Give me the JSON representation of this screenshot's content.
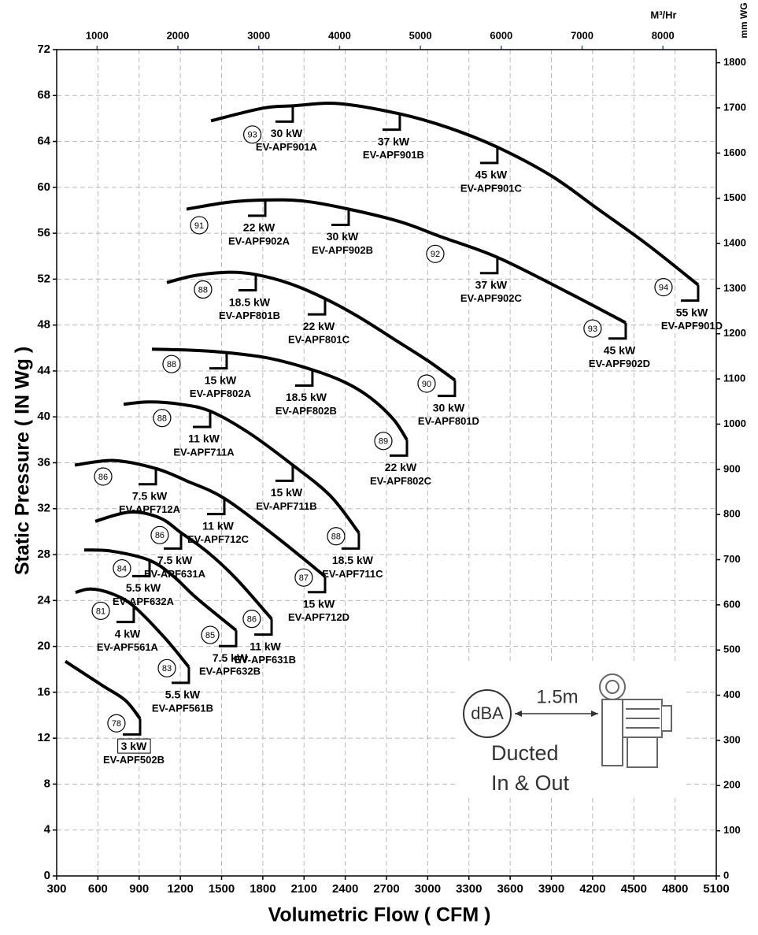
{
  "chart_data": {
    "type": "line",
    "xlabel": "Volumetric Flow ( CFM )",
    "ylabel": "Static Pressure (  IN Wg  )",
    "x2label": "M³/Hr",
    "y2label": "mm WG",
    "xlim": [
      300,
      5100
    ],
    "xticks": [
      300,
      600,
      900,
      1200,
      1500,
      1800,
      2100,
      2400,
      2700,
      3000,
      3300,
      3600,
      3900,
      4200,
      4500,
      4800,
      5100
    ],
    "ylim": [
      0,
      72
    ],
    "yticks": [
      0,
      4,
      8,
      12,
      16,
      20,
      24,
      28,
      32,
      36,
      40,
      44,
      48,
      52,
      56,
      60,
      64,
      68,
      72
    ],
    "x2lim": [
      500,
      8660
    ],
    "x2ticks": [
      1000,
      2000,
      3000,
      4000,
      5000,
      6000,
      7000,
      8000
    ],
    "y2lim": [
      0,
      1829
    ],
    "y2ticks": [
      0,
      100,
      200,
      300,
      400,
      500,
      600,
      700,
      800,
      900,
      1000,
      1100,
      1200,
      1300,
      1400,
      1500,
      1600,
      1700,
      1800
    ],
    "grid": true,
    "color": "#000000",
    "series": [
      {
        "x": [
          1423,
          1800,
          2018,
          2350,
          2797,
          3150,
          3507,
          3900,
          4240,
          4600,
          4968
        ],
        "values": [
          65.8,
          66.9,
          67.1,
          67.3,
          66.4,
          65.2,
          63.5,
          61.0,
          58.1,
          55.0,
          51.5
        ],
        "points": [
          {
            "x": 2018,
            "y": 67.1,
            "power": "30 kW",
            "model": "EV-APF901A"
          },
          {
            "x": 2797,
            "y": 66.4,
            "power": "37 kW",
            "model": "EV-APF901B"
          },
          {
            "x": 3507,
            "y": 63.5,
            "power": "45 kW",
            "model": "EV-APF901C"
          },
          {
            "x": 4968,
            "y": 51.5,
            "power": "55 kW",
            "model": "EV-APF901D"
          }
        ]
      },
      {
        "x": [
          1245,
          1550,
          1818,
          2100,
          2425,
          2800,
          3095,
          3507,
          4011,
          4441
        ],
        "values": [
          58.1,
          58.7,
          58.9,
          58.8,
          58.1,
          57.0,
          55.7,
          53.9,
          50.9,
          48.2
        ],
        "points": [
          {
            "x": 1818,
            "y": 58.9,
            "power": "22 kW",
            "model": "EV-APF902A"
          },
          {
            "x": 2425,
            "y": 58.1,
            "power": "30 kW",
            "model": "EV-APF902B"
          },
          {
            "x": 3507,
            "y": 53.9,
            "power": "37 kW",
            "model": "EV-APF902C"
          },
          {
            "x": 4441,
            "y": 48.2,
            "power": "45 kW",
            "model": "EV-APF902D"
          }
        ]
      },
      {
        "x": [
          1102,
          1300,
          1549,
          1749,
          2000,
          2253,
          2500,
          2751,
          3000,
          3198
        ],
        "values": [
          51.7,
          52.3,
          52.6,
          52.4,
          51.6,
          50.3,
          48.7,
          46.8,
          44.9,
          43.2
        ],
        "points": [
          {
            "x": 1749,
            "y": 52.4,
            "power": "18.5 kW",
            "model": "EV-APF801B"
          },
          {
            "x": 2253,
            "y": 50.3,
            "power": "22 kW",
            "model": "EV-APF801C"
          },
          {
            "x": 3198,
            "y": 43.2,
            "power": "30 kW",
            "model": "EV-APF801D"
          }
        ]
      },
      {
        "x": [
          993,
          1300,
          1537,
          1850,
          2161,
          2400,
          2579,
          2750,
          2849
        ],
        "values": [
          45.9,
          45.8,
          45.6,
          45.1,
          44.1,
          43.0,
          41.7,
          39.8,
          38.0
        ],
        "points": [
          {
            "x": 1537,
            "y": 45.6,
            "power": "15 kW",
            "model": "EV-APF802A"
          },
          {
            "x": 2161,
            "y": 44.1,
            "power": "18.5 kW",
            "model": "EV-APF802B"
          },
          {
            "x": 2849,
            "y": 38.0,
            "power": "22 kW",
            "model": "EV-APF802C"
          }
        ]
      },
      {
        "x": [
          787,
          976,
          1200,
          1417,
          1700,
          2018,
          2293,
          2499
        ],
        "values": [
          41.1,
          41.3,
          41.1,
          40.5,
          38.6,
          35.8,
          33.1,
          29.9
        ],
        "points": [
          {
            "x": 1417,
            "y": 40.5,
            "power": "11 kW",
            "model": "EV-APF711A"
          },
          {
            "x": 2018,
            "y": 35.8,
            "power": "15 kW",
            "model": "EV-APF711B"
          },
          {
            "x": 2499,
            "y": 29.9,
            "power": "18.5 kW",
            "model": "EV-APF711C"
          }
        ]
      },
      {
        "x": [
          432,
          718,
          1022,
          1250,
          1520,
          1892,
          2253
        ],
        "values": [
          35.8,
          36.2,
          35.5,
          34.4,
          32.9,
          29.6,
          26.1
        ],
        "points": [
          {
            "x": 1022,
            "y": 35.5,
            "power": "7.5 kW",
            "model": "EV-APF712A"
          },
          {
            "x": 1520,
            "y": 32.9,
            "power": "11 kW",
            "model": "EV-APF712C"
          },
          {
            "x": 2253,
            "y": 26.1,
            "power": "15 kW",
            "model": "EV-APF712D"
          }
        ]
      },
      {
        "x": [
          581,
          833,
          1050,
          1205,
          1400,
          1606,
          1864
        ],
        "values": [
          30.9,
          31.7,
          31.2,
          29.9,
          28.2,
          25.9,
          22.4
        ],
        "points": [
          {
            "x": 1205,
            "y": 29.9,
            "power": "7.5 kW",
            "model": "EV-APF631A"
          },
          {
            "x": 1864,
            "y": 22.4,
            "power": "11 kW",
            "model": "EV-APF631B"
          }
        ]
      },
      {
        "x": [
          500,
          700,
          976,
          1150,
          1319,
          1606
        ],
        "values": [
          28.4,
          28.3,
          27.5,
          26.1,
          24.2,
          21.4
        ],
        "points": [
          {
            "x": 976,
            "y": 27.5,
            "power": "5.5 kW",
            "model": "EV-APF632A"
          },
          {
            "x": 1606,
            "y": 21.4,
            "power": "7.5 kW",
            "model": "EV-APF632B"
          }
        ]
      },
      {
        "x": [
          437,
          546,
          700,
          861,
          1090,
          1262
        ],
        "values": [
          24.7,
          25.0,
          24.6,
          23.5,
          20.7,
          18.2
        ],
        "points": [
          {
            "x": 861,
            "y": 23.5,
            "power": "4 kW",
            "model": "EV-APF561A"
          },
          {
            "x": 1262,
            "y": 18.2,
            "power": "5.5 kW",
            "model": "EV-APF561B"
          }
        ]
      },
      {
        "x": [
          363,
          632,
          800,
          907
        ],
        "values": [
          18.7,
          16.6,
          15.3,
          13.7
        ],
        "points": [
          {
            "x": 907,
            "y": 13.7,
            "power": "3 kW",
            "model": "EV-APF502B",
            "boxed": true
          }
        ]
      }
    ],
    "annotations": [
      {
        "x": 1724,
        "y": 64.6,
        "text": 93
      },
      {
        "x": 1337,
        "y": 56.7,
        "text": 91
      },
      {
        "x": 1365,
        "y": 51.1,
        "text": 88
      },
      {
        "x": 1136,
        "y": 44.6,
        "text": 88
      },
      {
        "x": 1067,
        "y": 39.9,
        "text": 88
      },
      {
        "x": 638,
        "y": 34.8,
        "text": 86
      },
      {
        "x": 1050,
        "y": 29.7,
        "text": 86
      },
      {
        "x": 775,
        "y": 26.8,
        "text": 84
      },
      {
        "x": 621,
        "y": 23.1,
        "text": 81
      },
      {
        "x": 735,
        "y": 13.3,
        "text": 78
      },
      {
        "x": 1102,
        "y": 18.1,
        "text": 83
      },
      {
        "x": 1417,
        "y": 21.0,
        "text": 85
      },
      {
        "x": 1720,
        "y": 22.4,
        "text": 86
      },
      {
        "x": 2098,
        "y": 26.0,
        "text": 87
      },
      {
        "x": 2333,
        "y": 29.6,
        "text": 88
      },
      {
        "x": 2677,
        "y": 37.9,
        "text": 89
      },
      {
        "x": 2992,
        "y": 42.9,
        "text": 90
      },
      {
        "x": 3055,
        "y": 54.2,
        "text": 92
      },
      {
        "x": 4200,
        "y": 47.7,
        "text": 93
      },
      {
        "x": 4716,
        "y": 51.3,
        "text": 94
      }
    ]
  },
  "inset": {
    "circle": "dBA",
    "distance": "1.5m",
    "note": [
      "Ducted",
      "In & Out"
    ]
  }
}
